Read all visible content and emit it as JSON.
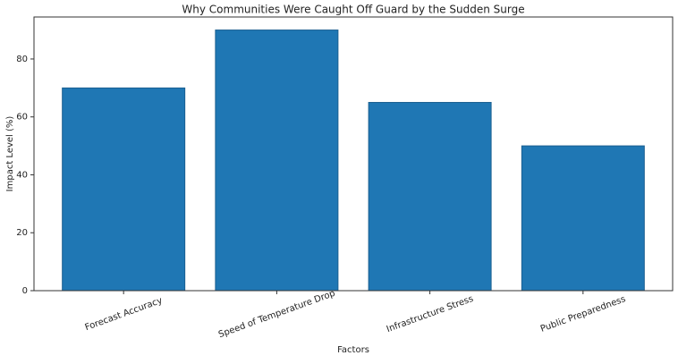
{
  "chart_data": {
    "type": "bar",
    "title": "Why Communities Were Caught Off Guard by the Sudden Surge",
    "x_label": "Factors",
    "y_label": "Impact Level (%)",
    "categories": [
      "Forecast Accuracy",
      "Speed of Temperature Drop",
      "Infrastructure Stress",
      "Public Preparedness"
    ],
    "values": [
      70,
      90,
      65,
      50
    ],
    "color": "#1f77b4",
    "ylim": [
      0,
      94.5
    ],
    "yticks": [
      0,
      20,
      40,
      60,
      80
    ],
    "grid": false
  }
}
